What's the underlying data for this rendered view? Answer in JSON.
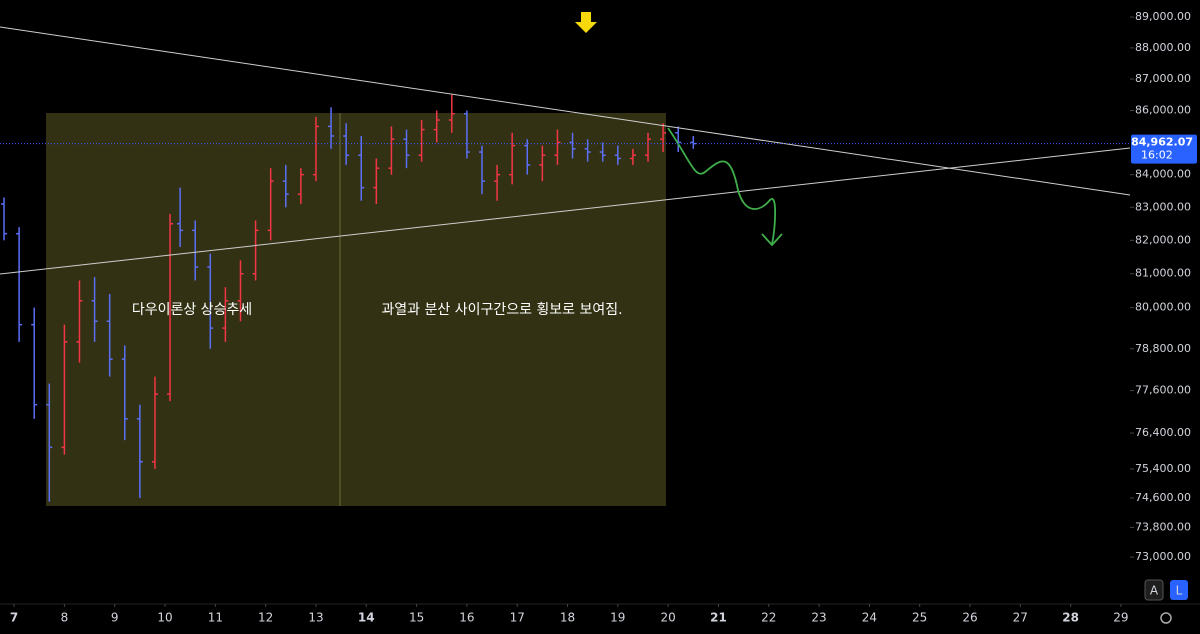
{
  "chart_data": {
    "type": "ohlc",
    "log_scale": true,
    "up_color": "#f23645",
    "down_color": "#5b6ff5",
    "x": [
      6.8,
      7.1,
      7.4,
      7.7,
      8.0,
      8.3,
      8.6,
      8.9,
      9.2,
      9.5,
      9.8,
      10.1,
      10.3,
      10.6,
      10.9,
      11.2,
      11.5,
      11.8,
      12.1,
      12.4,
      12.7,
      13.0,
      13.3,
      13.6,
      13.9,
      14.2,
      14.5,
      14.8,
      15.1,
      15.4,
      15.7,
      16.0,
      16.3,
      16.6,
      16.9,
      17.2,
      17.5,
      17.8,
      18.1,
      18.4,
      18.7,
      19.0,
      19.3,
      19.6,
      19.9,
      20.2,
      20.5
    ],
    "open": [
      83100,
      82200,
      79500,
      77200,
      76000,
      79000,
      80200,
      79600,
      78500,
      76800,
      75600,
      77500,
      82500,
      82300,
      81200,
      79400,
      80200,
      81000,
      82300,
      83800,
      83400,
      84000,
      85500,
      85200,
      84600,
      83600,
      84200,
      85100,
      84600,
      85400,
      85700,
      85900,
      84700,
      83800,
      84000,
      84900,
      84300,
      84600,
      85000,
      84800,
      84700,
      84600,
      84500,
      84600,
      85100,
      85300,
      85000
    ],
    "high": [
      83300,
      82400,
      80000,
      77800,
      79500,
      80800,
      80900,
      80400,
      78900,
      77200,
      78000,
      82800,
      83600,
      82600,
      81600,
      80600,
      81400,
      82600,
      84200,
      84300,
      84200,
      85800,
      86100,
      85600,
      85200,
      84500,
      85500,
      85400,
      85700,
      86000,
      86500,
      86000,
      84900,
      84300,
      85300,
      85100,
      84900,
      85400,
      85300,
      85100,
      85000,
      84900,
      84800,
      85300,
      85600,
      85500,
      85200
    ],
    "low": [
      82000,
      79000,
      76800,
      74500,
      75800,
      78400,
      79000,
      78000,
      76200,
      74600,
      75400,
      77300,
      81800,
      80800,
      78800,
      79000,
      79600,
      80800,
      82000,
      83000,
      83100,
      83800,
      84800,
      84300,
      83200,
      83100,
      84000,
      84200,
      84400,
      85000,
      85300,
      84500,
      83400,
      83200,
      83700,
      84000,
      83800,
      84300,
      84500,
      84400,
      84400,
      84300,
      84300,
      84400,
      84700,
      84700,
      84800
    ],
    "close": [
      82200,
      79500,
      77200,
      76000,
      79000,
      80200,
      79600,
      78500,
      76800,
      75600,
      77500,
      82500,
      82300,
      81200,
      79400,
      80200,
      81000,
      82300,
      83800,
      83400,
      84000,
      85500,
      85200,
      84600,
      83600,
      84200,
      85100,
      84600,
      85400,
      85700,
      85900,
      84700,
      83800,
      84000,
      84900,
      84300,
      84600,
      85000,
      84800,
      84700,
      84600,
      84500,
      84600,
      85100,
      85300,
      85000,
      84962.07
    ],
    "xlim": [
      6.72,
      29.18
    ],
    "xticks": [
      7,
      8,
      9,
      10,
      11,
      12,
      13,
      14,
      15,
      16,
      17,
      18,
      19,
      20,
      21,
      22,
      23,
      24,
      25,
      26,
      27,
      28,
      29
    ],
    "ylim": [
      71860,
      89560
    ],
    "yticks": [
      {
        "value": 89000,
        "label": "89,000.00"
      },
      {
        "value": 88000,
        "label": "88,000.00"
      },
      {
        "value": 87000,
        "label": "87,000.00"
      },
      {
        "value": 86000,
        "label": "86,000.00"
      },
      {
        "value": 84000,
        "label": "84,000.00"
      },
      {
        "value": 83000,
        "label": "83,000.00"
      },
      {
        "value": 82000,
        "label": "82,000.00"
      },
      {
        "value": 81000,
        "label": "81,000.00"
      },
      {
        "value": 80000,
        "label": "80,000.00"
      },
      {
        "value": 78800,
        "label": "78,800.00"
      },
      {
        "value": 77600,
        "label": "77,600.00"
      },
      {
        "value": 76400,
        "label": "76,400.00"
      },
      {
        "value": 75400,
        "label": "75,400.00"
      },
      {
        "value": 74600,
        "label": "74,600.00"
      },
      {
        "value": 73800,
        "label": "73,800.00"
      },
      {
        "value": 73000,
        "label": "73,000.00"
      }
    ],
    "last_price": {
      "value": 84962.07,
      "label": "84,962.07"
    },
    "countdown": "16:02",
    "annotations": [
      "다우이론상 상승추세",
      "과열과 분산 사이구간으로 횡보로 보여짐."
    ],
    "buttons": [
      "A",
      "L"
    ]
  }
}
